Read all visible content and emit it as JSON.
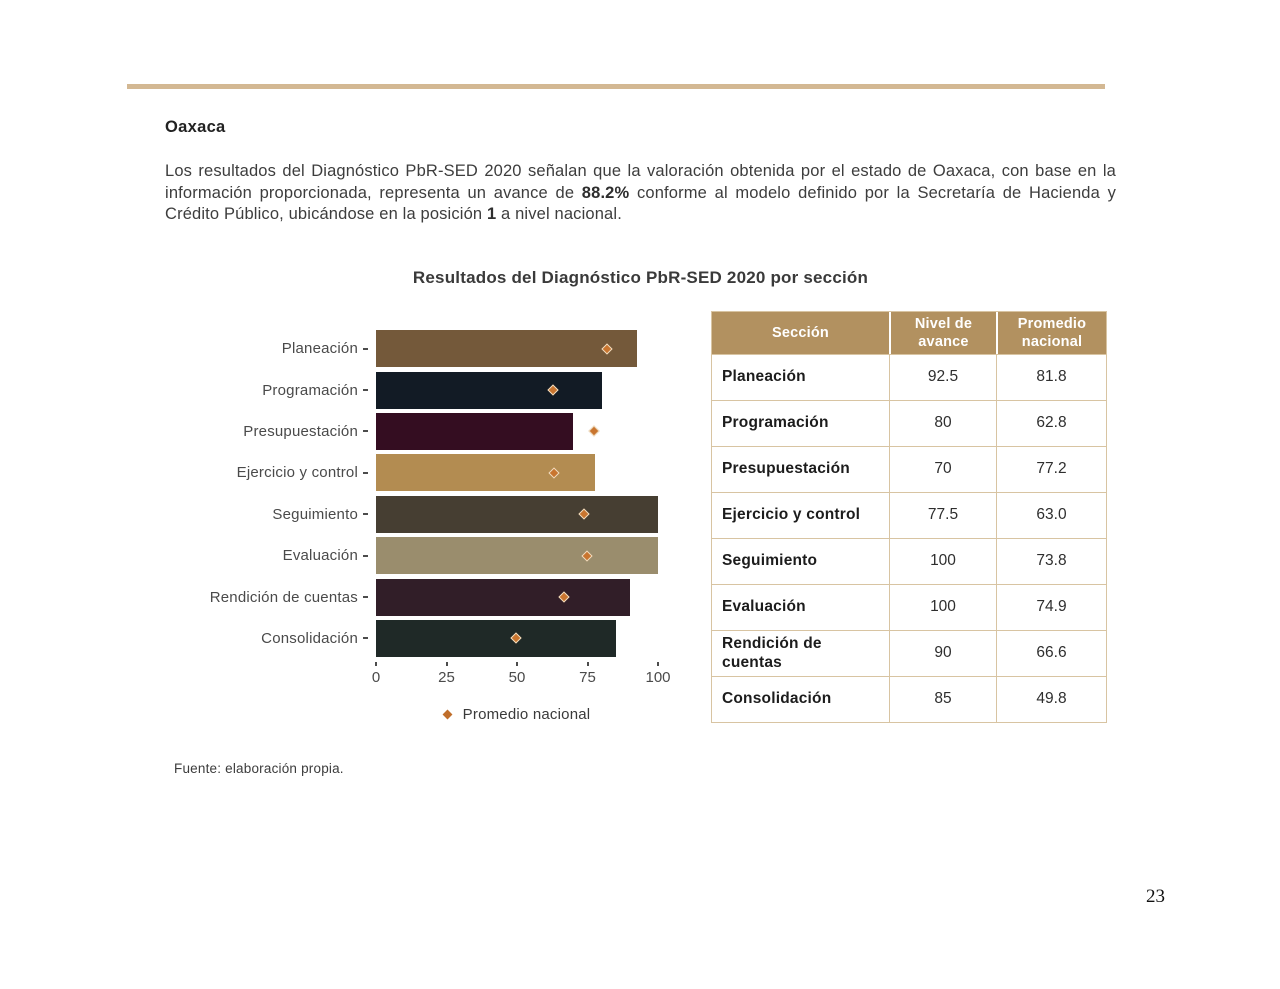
{
  "page": {
    "number": "23"
  },
  "colors": {
    "rule": "#d3b893",
    "table_header_bg": "#b29160",
    "table_border": "#d8c4a2",
    "marker_fill": "#c9752f",
    "marker_stroke": "#efdec2",
    "legend_marker": "#c06e2b"
  },
  "header": {
    "title": "Oaxaca"
  },
  "intro": {
    "segments": [
      {
        "text": "Los resultados del Diagnóstico PbR-SED 2020 señalan que la valoración obtenida por el estado de Oaxaca, con base en la información proporcionada, representa un avance de ",
        "bold": false
      },
      {
        "text": "88.2%",
        "bold": true
      },
      {
        "text": " conforme al modelo definido por la Secretaría de Hacienda y Crédito Público, ubicándose en la posición ",
        "bold": false
      },
      {
        "text": "1",
        "bold": true
      },
      {
        "text": " a nivel nacional.",
        "bold": false
      }
    ]
  },
  "chart_data": {
    "type": "bar",
    "orientation": "horizontal",
    "title": "Resultados del Diagnóstico PbR-SED 2020 por sección",
    "categories": [
      "Planeación",
      "Programación",
      "Presupuestación",
      "Ejercicio y control",
      "Seguimiento",
      "Evaluación",
      "Rendición de cuentas",
      "Consolidación"
    ],
    "series": [
      {
        "name": "Nivel de avance",
        "style": "bar",
        "values": [
          92.5,
          80,
          70,
          77.5,
          100,
          100,
          90,
          85
        ]
      },
      {
        "name": "Promedio nacional",
        "style": "diamond-marker",
        "values": [
          81.8,
          62.8,
          77.2,
          63.0,
          73.8,
          74.9,
          66.6,
          49.8
        ]
      }
    ],
    "bar_colors": [
      "#74593a",
      "#121b25",
      "#340d21",
      "#b38c51",
      "#463e32",
      "#9a8d6d",
      "#311e28",
      "#1f2927"
    ],
    "xlim": [
      0,
      100
    ],
    "x_ticks": [
      0,
      25,
      50,
      75,
      100
    ],
    "grid": false,
    "legend": {
      "position": "bottom-center",
      "label": "Promedio nacional"
    }
  },
  "table": {
    "headers": [
      "Sección",
      "Nivel de avance",
      "Promedio nacional"
    ],
    "rows": [
      [
        "Planeación",
        "92.5",
        "81.8"
      ],
      [
        "Programación",
        "80",
        "62.8"
      ],
      [
        "Presupuestación",
        "70",
        "77.2"
      ],
      [
        "Ejercicio y control",
        "77.5",
        "63.0"
      ],
      [
        "Seguimiento",
        "100",
        "73.8"
      ],
      [
        "Evaluación",
        "100",
        "74.9"
      ],
      [
        "Rendición de cuentas",
        "90",
        "66.6"
      ],
      [
        "Consolidación",
        "85",
        "49.8"
      ]
    ]
  },
  "source_note": "Fuente: elaboración propia.",
  "legend_label": "Promedio nacional"
}
